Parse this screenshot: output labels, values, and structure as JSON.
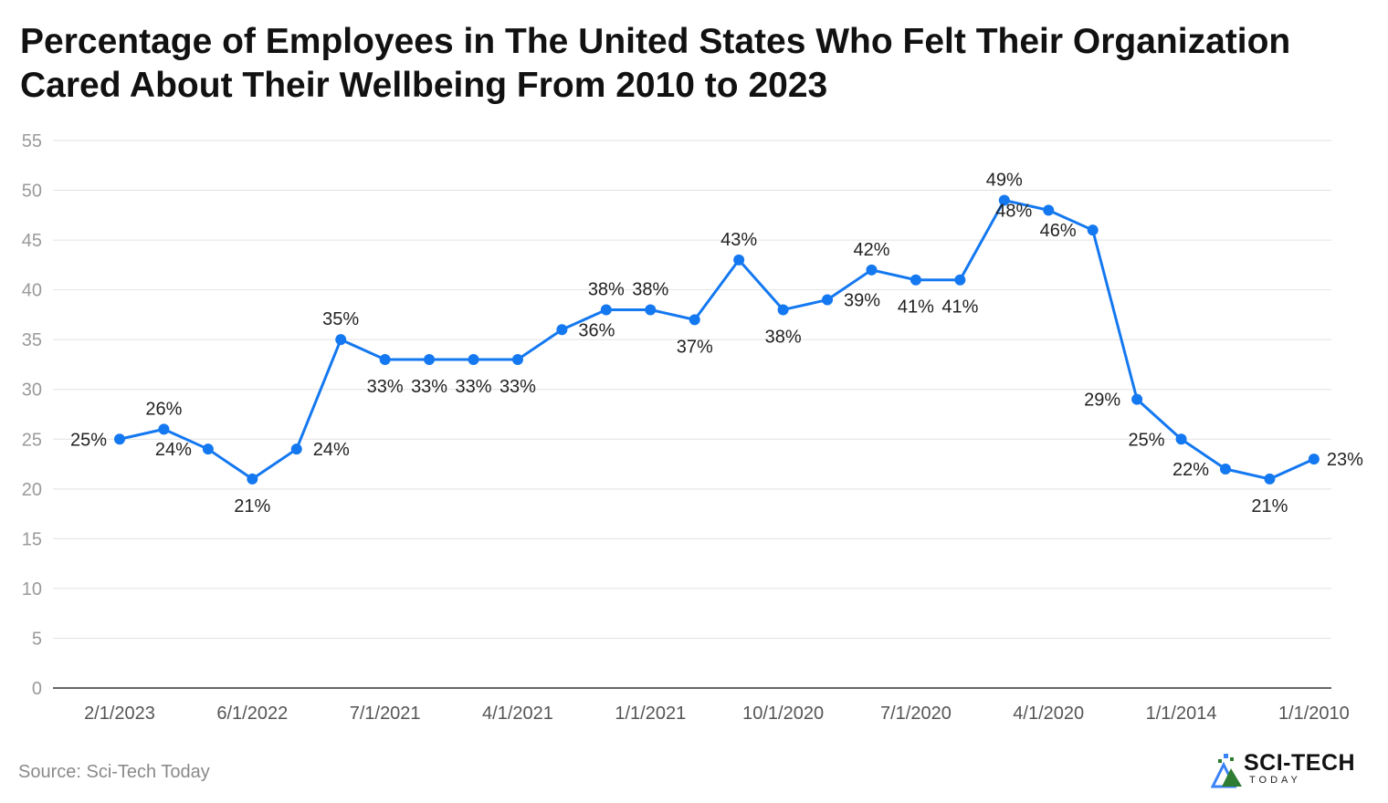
{
  "title": "Percentage of Employees in The United States Who Felt Their Organization Cared About Their Wellbeing From 2010 to 2023",
  "source": "Source: Sci-Tech Today",
  "logo": {
    "name": "SCI-TECH",
    "sub": "TODAY"
  },
  "colors": {
    "line": "#1478f0",
    "grid": "#e2e2e2",
    "axis": "#333333",
    "tick_text": "#9a9a9a",
    "label_text": "#222222"
  },
  "chart_data": {
    "type": "line",
    "title": "Percentage of Employees in The United States Who Felt Their Organization Cared About Their Wellbeing From 2010 to 2023",
    "xlabel": "",
    "ylabel": "",
    "ylim": [
      0,
      55
    ],
    "yticks": [
      0,
      5,
      10,
      15,
      20,
      25,
      30,
      35,
      40,
      45,
      50,
      55
    ],
    "grid": true,
    "x_tick_labels": [
      "2/1/2023",
      "6/1/2022",
      "7/1/2021",
      "4/1/2021",
      "1/1/2021",
      "10/1/2020",
      "7/1/2020",
      "4/1/2020",
      "1/1/2014",
      "1/1/2010"
    ],
    "series": [
      {
        "values": [
          25,
          26,
          24,
          21,
          24,
          35,
          33,
          33,
          33,
          33,
          36,
          38,
          38,
          37,
          43,
          38,
          39,
          42,
          41,
          41,
          49,
          48,
          46,
          29,
          25,
          22,
          21,
          23
        ],
        "labels": [
          "25%",
          "26%",
          "24%",
          "21%",
          "24%",
          "35%",
          "33%",
          "33%",
          "33%",
          "33%",
          "36%",
          "38%",
          "38%",
          "37%",
          "43%",
          "38%",
          "39%",
          "42%",
          "41%",
          "41%",
          "49%",
          "48%",
          "46%",
          "29%",
          "25%",
          "22%",
          "21%",
          "23%"
        ]
      }
    ]
  }
}
